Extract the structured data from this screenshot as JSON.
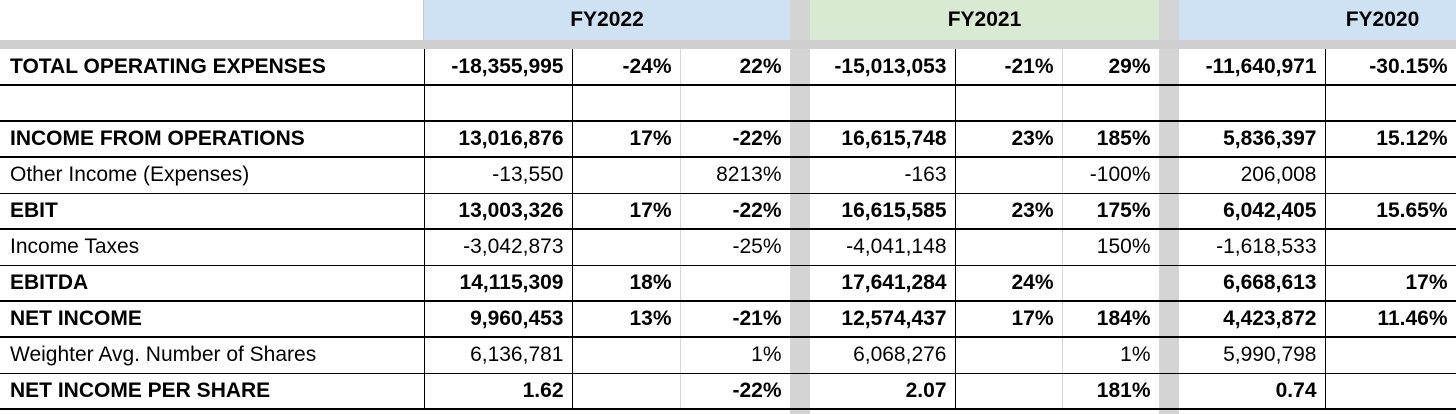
{
  "years": [
    {
      "label": "FY2022",
      "bg": "#cfe2f3"
    },
    {
      "label": "FY2021",
      "bg": "#d9ead3"
    },
    {
      "label": "FY2020",
      "bg": "#cfe2f3"
    }
  ],
  "rows": [
    {
      "label": "TOTAL OPERATING EXPENSES",
      "bold": true,
      "cells": [
        "-18,355,995",
        "-24%",
        "22%",
        "-15,013,053",
        "-21%",
        "29%",
        "-11,640,971",
        "-30.15%"
      ]
    },
    {
      "label": "",
      "bold": false,
      "empty": true,
      "cells": [
        "",
        "",
        "",
        "",
        "",
        "",
        "",
        ""
      ]
    },
    {
      "label": "INCOME FROM OPERATIONS",
      "bold": true,
      "cells": [
        "13,016,876",
        "17%",
        "-22%",
        "16,615,748",
        "23%",
        "185%",
        "5,836,397",
        "15.12%"
      ]
    },
    {
      "label": "Other Income (Expenses)",
      "bold": false,
      "cells": [
        "-13,550",
        "",
        "8213%",
        "-163",
        "",
        "-100%",
        "206,008",
        ""
      ]
    },
    {
      "label": "EBIT",
      "bold": true,
      "cells": [
        "13,003,326",
        "17%",
        "-22%",
        "16,615,585",
        "23%",
        "175%",
        "6,042,405",
        "15.65%"
      ]
    },
    {
      "label": "Income Taxes",
      "bold": false,
      "cells": [
        "-3,042,873",
        "",
        "-25%",
        "-4,041,148",
        "",
        "150%",
        "-1,618,533",
        ""
      ]
    },
    {
      "label": "EBITDA",
      "bold": true,
      "cells": [
        "14,115,309",
        "18%",
        "",
        "17,641,284",
        "24%",
        "",
        "6,668,613",
        "17%"
      ]
    },
    {
      "label": "NET INCOME",
      "bold": true,
      "cells": [
        "9,960,453",
        "13%",
        "-21%",
        "12,574,437",
        "17%",
        "184%",
        "4,423,872",
        "11.46%"
      ]
    },
    {
      "label": "Weighter Avg. Number of Shares",
      "bold": false,
      "cells": [
        "6,136,781",
        "",
        "1%",
        "6,068,276",
        "",
        "1%",
        "5,990,798",
        ""
      ]
    },
    {
      "label": "NET INCOME PER SHARE",
      "bold": true,
      "cells": [
        "1.62",
        "",
        "-22%",
        "2.07",
        "",
        "181%",
        "0.74",
        ""
      ]
    }
  ]
}
